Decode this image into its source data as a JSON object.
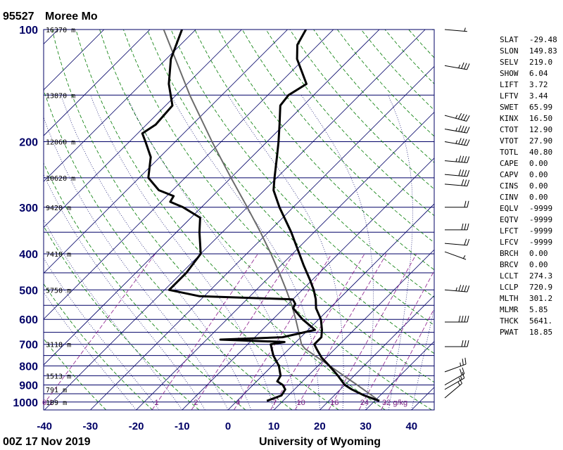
{
  "header": {
    "station_id": "95527",
    "station_name": "Moree Mo"
  },
  "footer": {
    "time": "00Z 17 Nov 2019",
    "source": "University of Wyoming"
  },
  "colors": {
    "isobar": "#000066",
    "isotherm": "#000066",
    "dry_adiabat": "#007a00",
    "mixing_ratio": "#8a1a8a",
    "sounding": "#000000",
    "parcel": "#6b6b6b"
  },
  "chart_data": {
    "type": "skew-t",
    "title": "95527 Moree Mo",
    "subtitle": "00Z 17 Nov 2019",
    "xlabel": "",
    "ylabel": "",
    "x_ticks": [
      -40,
      -30,
      -20,
      -10,
      0,
      10,
      20,
      30,
      40
    ],
    "p_labels": [
      100,
      200,
      300,
      400,
      500,
      600,
      700,
      800,
      900,
      1000
    ],
    "isobars": [
      100,
      150,
      200,
      250,
      300,
      350,
      400,
      450,
      500,
      550,
      600,
      650,
      700,
      750,
      800,
      850,
      900,
      950,
      1000
    ],
    "heights": [
      {
        "p": 100,
        "label": "16370 m"
      },
      {
        "p": 150,
        "label": "13870 m"
      },
      {
        "p": 200,
        "label": "12060 m"
      },
      {
        "p": 250,
        "label": "10620 m"
      },
      {
        "p": 300,
        "label": "9420 m"
      },
      {
        "p": 400,
        "label": "7410 m"
      },
      {
        "p": 500,
        "label": "5750 m"
      },
      {
        "p": 700,
        "label": "3118 m"
      },
      {
        "p": 850,
        "label": "1513 m"
      },
      {
        "p": 925,
        "label": "791 m"
      },
      {
        "p": 1000,
        "label": "109 m"
      }
    ],
    "mixing_ratio_labels": [
      "0.1",
      "1",
      "2",
      "4",
      "7",
      "10",
      "16",
      "24",
      "32 g/kg"
    ],
    "mixing_ratio_values": [
      0.1,
      1,
      2,
      4,
      7,
      10,
      16,
      24,
      32
    ],
    "temperature": [
      {
        "p": 993,
        "t": 31.0
      },
      {
        "p": 960,
        "t": 26.5
      },
      {
        "p": 925,
        "t": 22.5
      },
      {
        "p": 900,
        "t": 20.0
      },
      {
        "p": 850,
        "t": 16.5
      },
      {
        "p": 800,
        "t": 12.5
      },
      {
        "p": 760,
        "t": 9.0
      },
      {
        "p": 720,
        "t": 6.0
      },
      {
        "p": 700,
        "t": 4.5
      },
      {
        "p": 670,
        "t": 4.5
      },
      {
        "p": 640,
        "t": 3.0
      },
      {
        "p": 600,
        "t": 0.5
      },
      {
        "p": 560,
        "t": -3.0
      },
      {
        "p": 530,
        "t": -5.0
      },
      {
        "p": 500,
        "t": -7.5
      },
      {
        "p": 470,
        "t": -10.5
      },
      {
        "p": 430,
        "t": -15.0
      },
      {
        "p": 400,
        "t": -18.5
      },
      {
        "p": 350,
        "t": -25.0
      },
      {
        "p": 300,
        "t": -33.0
      },
      {
        "p": 270,
        "t": -38.0
      },
      {
        "p": 250,
        "t": -40.5
      },
      {
        "p": 220,
        "t": -44.5
      },
      {
        "p": 200,
        "t": -47.5
      },
      {
        "p": 180,
        "t": -51.0
      },
      {
        "p": 160,
        "t": -55.0
      },
      {
        "p": 150,
        "t": -55.5
      },
      {
        "p": 140,
        "t": -54.0
      },
      {
        "p": 120,
        "t": -61.5
      },
      {
        "p": 110,
        "t": -64.5
      },
      {
        "p": 100,
        "t": -66.0
      }
    ],
    "dewpoint": [
      {
        "p": 993,
        "t": 6.5
      },
      {
        "p": 960,
        "t": 8.5
      },
      {
        "p": 925,
        "t": 8.0
      },
      {
        "p": 900,
        "t": 6.5
      },
      {
        "p": 880,
        "t": 4.5
      },
      {
        "p": 850,
        "t": 4.0
      },
      {
        "p": 800,
        "t": 1.5
      },
      {
        "p": 750,
        "t": -2.0
      },
      {
        "p": 700,
        "t": -5.0
      },
      {
        "p": 690,
        "t": -2.5
      },
      {
        "p": 680,
        "t": -17.0
      },
      {
        "p": 670,
        "t": -4.0
      },
      {
        "p": 640,
        "t": 1.5
      },
      {
        "p": 600,
        "t": -3.5
      },
      {
        "p": 560,
        "t": -8.0
      },
      {
        "p": 545,
        "t": -8.5
      },
      {
        "p": 530,
        "t": -10.0
      },
      {
        "p": 520,
        "t": -31.0
      },
      {
        "p": 500,
        "t": -39.0
      },
      {
        "p": 450,
        "t": -39.0
      },
      {
        "p": 400,
        "t": -40.0
      },
      {
        "p": 350,
        "t": -45.0
      },
      {
        "p": 320,
        "t": -48.0
      },
      {
        "p": 300,
        "t": -54.0
      },
      {
        "p": 290,
        "t": -58.0
      },
      {
        "p": 280,
        "t": -58.5
      },
      {
        "p": 270,
        "t": -63.0
      },
      {
        "p": 250,
        "t": -68.0
      },
      {
        "p": 220,
        "t": -72.0
      },
      {
        "p": 200,
        "t": -76.5
      },
      {
        "p": 190,
        "t": -79.0
      },
      {
        "p": 180,
        "t": -78.0
      },
      {
        "p": 160,
        "t": -78.5
      },
      {
        "p": 140,
        "t": -84.0
      },
      {
        "p": 120,
        "t": -89.0
      },
      {
        "p": 100,
        "t": -93.0
      }
    ],
    "parcel": [
      {
        "p": 993,
        "t": 31.0
      },
      {
        "p": 950,
        "t": 27.3
      },
      {
        "p": 900,
        "t": 22.7
      },
      {
        "p": 850,
        "t": 17.8
      },
      {
        "p": 800,
        "t": 12.6
      },
      {
        "p": 750,
        "t": 7.0
      },
      {
        "p": 720,
        "t": 3.5
      },
      {
        "p": 700,
        "t": 1.7
      },
      {
        "p": 650,
        "t": -1.5
      },
      {
        "p": 600,
        "t": -5.0
      },
      {
        "p": 550,
        "t": -8.9
      },
      {
        "p": 500,
        "t": -13.5
      },
      {
        "p": 450,
        "t": -18.7
      },
      {
        "p": 400,
        "t": -24.7
      },
      {
        "p": 350,
        "t": -31.7
      },
      {
        "p": 300,
        "t": -40.0
      },
      {
        "p": 250,
        "t": -50.0
      },
      {
        "p": 200,
        "t": -62.0
      },
      {
        "p": 150,
        "t": -77.0
      },
      {
        "p": 100,
        "t": -97.0
      }
    ],
    "wind_barbs": [
      {
        "p": 100,
        "dir": 275,
        "spd": 5
      },
      {
        "p": 125,
        "dir": 280,
        "spd": 35
      },
      {
        "p": 170,
        "dir": 285,
        "spd": 45
      },
      {
        "p": 185,
        "dir": 280,
        "spd": 45
      },
      {
        "p": 200,
        "dir": 280,
        "spd": 45
      },
      {
        "p": 225,
        "dir": 275,
        "spd": 45
      },
      {
        "p": 245,
        "dir": 275,
        "spd": 40
      },
      {
        "p": 260,
        "dir": 275,
        "spd": 30
      },
      {
        "p": 300,
        "dir": 270,
        "spd": 20
      },
      {
        "p": 345,
        "dir": 270,
        "spd": 30
      },
      {
        "p": 375,
        "dir": 275,
        "spd": 20
      },
      {
        "p": 395,
        "dir": 290,
        "spd": 5
      },
      {
        "p": 500,
        "dir": 275,
        "spd": 45
      },
      {
        "p": 610,
        "dir": 270,
        "spd": 40
      },
      {
        "p": 710,
        "dir": 270,
        "spd": 30
      },
      {
        "p": 830,
        "dir": 250,
        "spd": 25
      },
      {
        "p": 900,
        "dir": 240,
        "spd": 20
      },
      {
        "p": 925,
        "dir": 240,
        "spd": 15
      },
      {
        "p": 975,
        "dir": 230,
        "spd": 15
      }
    ]
  },
  "indices": [
    {
      "key": "SLAT",
      "value": "-29.48"
    },
    {
      "key": "SLON",
      "value": "149.83"
    },
    {
      "key": "SELV",
      "value": "219.0"
    },
    {
      "key": "SHOW",
      "value": "6.04"
    },
    {
      "key": "LIFT",
      "value": "3.72"
    },
    {
      "key": "LFTV",
      "value": "3.44"
    },
    {
      "key": "SWET",
      "value": "65.99"
    },
    {
      "key": "KINX",
      "value": "16.50"
    },
    {
      "key": "CTOT",
      "value": "12.90"
    },
    {
      "key": "VTOT",
      "value": "27.90"
    },
    {
      "key": "TOTL",
      "value": "40.80"
    },
    {
      "key": "CAPE",
      "value": "0.00"
    },
    {
      "key": "CAPV",
      "value": "0.00"
    },
    {
      "key": "CINS",
      "value": "0.00"
    },
    {
      "key": "CINV",
      "value": "0.00"
    },
    {
      "key": "EQLV",
      "value": "-9999"
    },
    {
      "key": "EQTV",
      "value": "-9999"
    },
    {
      "key": "LFCT",
      "value": "-9999"
    },
    {
      "key": "LFCV",
      "value": "-9999"
    },
    {
      "key": "BRCH",
      "value": "0.00"
    },
    {
      "key": "BRCV",
      "value": "0.00"
    },
    {
      "key": "LCLT",
      "value": "274.3"
    },
    {
      "key": "LCLP",
      "value": "720.9"
    },
    {
      "key": "MLTH",
      "value": "301.2"
    },
    {
      "key": "MLMR",
      "value": "5.85"
    },
    {
      "key": "THCK",
      "value": "5641."
    },
    {
      "key": "PWAT",
      "value": "18.85"
    }
  ]
}
